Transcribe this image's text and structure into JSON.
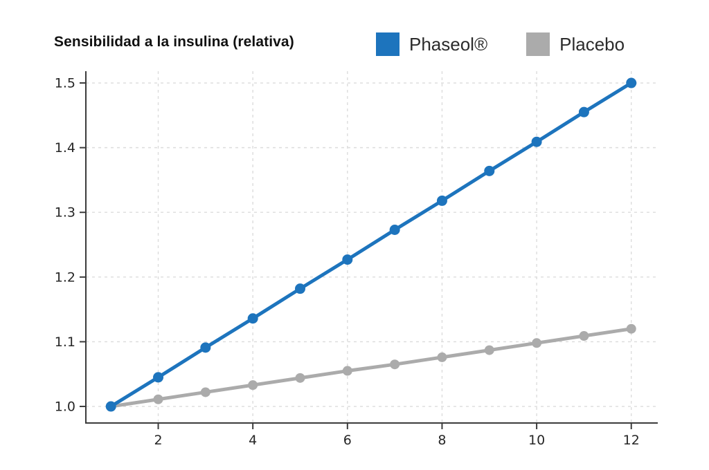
{
  "page": {
    "background": "#ffffff"
  },
  "title": {
    "text": "Sensibilidad a la insulina (relativa)",
    "color": "#111111"
  },
  "legend": [
    {
      "label": "Phaseol®",
      "color": "#1d74bd"
    },
    {
      "label": "Placebo",
      "color": "#ababab"
    }
  ],
  "chart_data": {
    "type": "line",
    "title": "Sensibilidad a la insulina (relativa)",
    "x": [
      1,
      2,
      3,
      4,
      5,
      6,
      7,
      8,
      9,
      10,
      11,
      12
    ],
    "series": [
      {
        "name": "Phaseol®",
        "color": "#1d74bd",
        "marker_radius": 7.5,
        "line_width": 5,
        "values": [
          1.0,
          1.045,
          1.091,
          1.136,
          1.182,
          1.227,
          1.273,
          1.318,
          1.364,
          1.409,
          1.455,
          1.5
        ]
      },
      {
        "name": "Placebo",
        "color": "#ababab",
        "marker_radius": 7,
        "line_width": 5,
        "values": [
          1.0,
          1.011,
          1.022,
          1.033,
          1.044,
          1.055,
          1.065,
          1.076,
          1.087,
          1.098,
          1.109,
          1.12
        ]
      }
    ],
    "xlabel": "",
    "ylabel": "",
    "xticks": [
      2,
      4,
      6,
      8,
      10,
      12
    ],
    "yticks": [
      1.0,
      1.1,
      1.2,
      1.3,
      1.4,
      1.5
    ],
    "xlim": [
      0.47,
      12.56
    ],
    "ylim": [
      0.9744,
      1.5182
    ],
    "grid": true,
    "grid_style": "dashed",
    "grid_color": "#dcdcdc",
    "axis_color": "#3b3b3b",
    "tick_label_color": "#262626",
    "legend_position": "top"
  }
}
